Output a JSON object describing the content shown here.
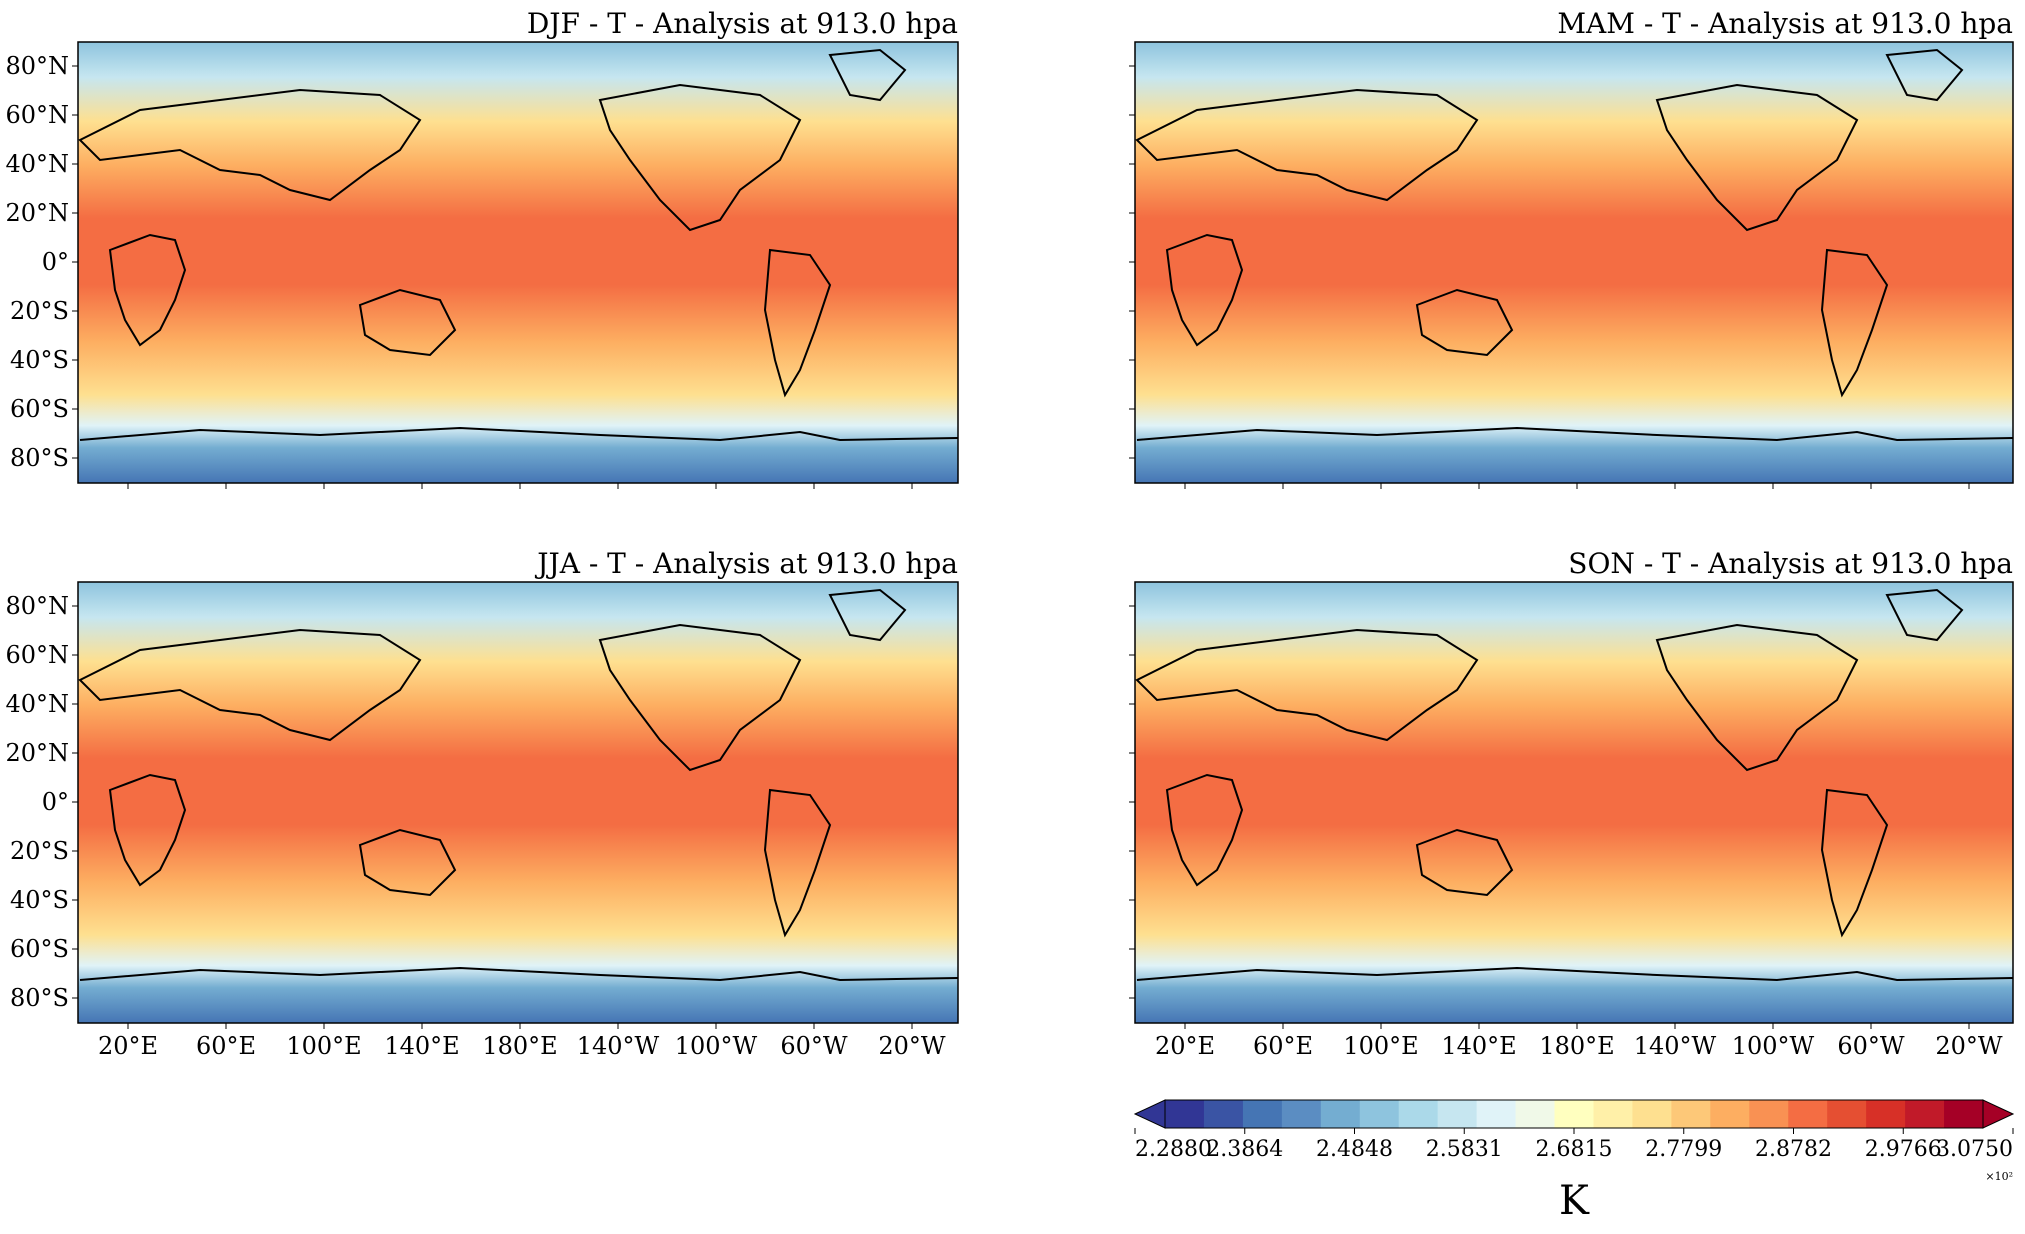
{
  "panels": [
    {
      "title": "DJF - T - Analysis at 913.0 hpa",
      "season": "DJF"
    },
    {
      "title": "MAM - T - Analysis at 913.0 hpa",
      "season": "MAM"
    },
    {
      "title": "JJA - T - Analysis at 913.0 hpa",
      "season": "JJA"
    },
    {
      "title": "SON - T - Analysis at 913.0 hpa",
      "season": "SON"
    }
  ],
  "lat_ticks": [
    "80°N",
    "60°N",
    "40°N",
    "20°N",
    "0°",
    "20°S",
    "40°S",
    "60°S",
    "80°S"
  ],
  "lon_ticks": [
    "20°E",
    "60°E",
    "100°E",
    "140°E",
    "180°E",
    "140°W",
    "100°W",
    "60°W",
    "20°W"
  ],
  "colorbar": {
    "ticks": [
      "2.2880",
      "2.3864",
      "2.4848",
      "2.5831",
      "2.6815",
      "2.7799",
      "2.8782",
      "2.9766",
      "3.0750"
    ],
    "multiplier": "×10²",
    "unit_label": "K",
    "colors": [
      "#313695",
      "#3a54a4",
      "#4575b4",
      "#5b8dc2",
      "#74add1",
      "#8ec4de",
      "#abd9e9",
      "#c6e6f0",
      "#e0f3f8",
      "#f0f9e8",
      "#ffffbf",
      "#fff0a8",
      "#fee090",
      "#fdc878",
      "#fdae61",
      "#f99153",
      "#f46d43",
      "#e54f32",
      "#d73027",
      "#c11a29",
      "#a50026"
    ]
  }
}
